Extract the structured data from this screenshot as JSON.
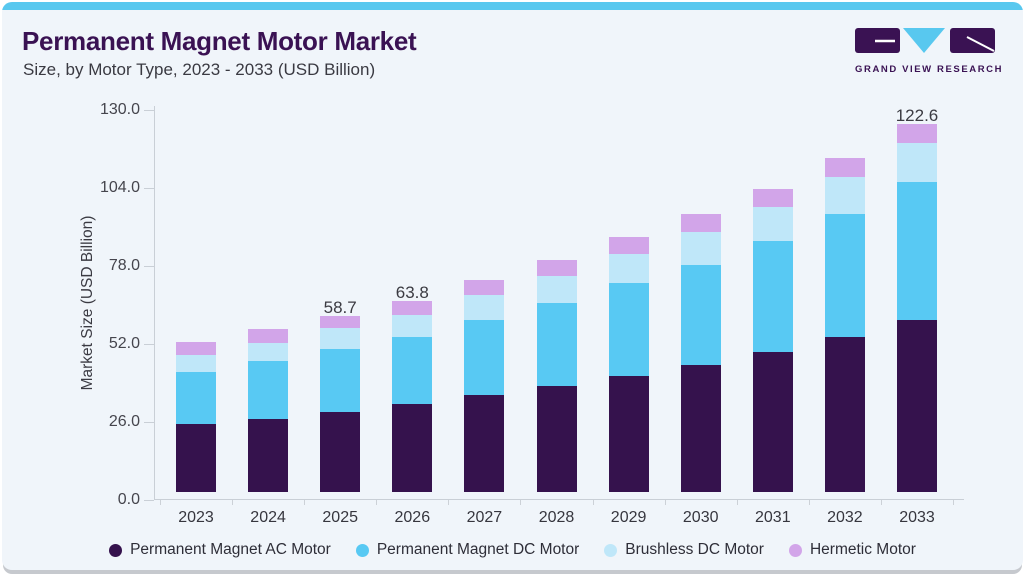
{
  "header": {
    "title": "Permanent Magnet Motor Market",
    "subtitle": "Size, by Motor Type, 2023 - 2033 (USD Billion)"
  },
  "logo": {
    "text": "GRAND VIEW RESEARCH",
    "mark_colors": {
      "purple": "#3a1253",
      "cyan": "#58c8ef"
    }
  },
  "chart_data": {
    "type": "bar",
    "stacked": true,
    "title": "Permanent Magnet Motor Market Size, by Motor Type, 2023 - 2033 (USD Billion)",
    "xlabel": "",
    "ylabel": "Market Size (USD Billion)",
    "ylim": [
      0,
      130
    ],
    "yticks": [
      0,
      26,
      52,
      78,
      104,
      130
    ],
    "ytick_labels": [
      "0.0",
      "26.0",
      "52.0",
      "78.0",
      "104.0",
      "130.0"
    ],
    "grid": false,
    "legend_position": "bottom",
    "categories": [
      "2023",
      "2024",
      "2025",
      "2026",
      "2027",
      "2028",
      "2029",
      "2030",
      "2031",
      "2032",
      "2033"
    ],
    "bar_total_labels": [
      "",
      "",
      "58.7",
      "63.8",
      "",
      "",
      "",
      "",
      "",
      "",
      "122.6"
    ],
    "series": [
      {
        "name": "Permanent Magnet AC Motor",
        "color": "#35124d",
        "values": [
          22.5,
          24.5,
          26.7,
          29.3,
          32.4,
          35.4,
          38.7,
          42.3,
          46.5,
          51.5,
          57.3
        ]
      },
      {
        "name": "Permanent Magnet DC Motor",
        "color": "#58c9f3",
        "values": [
          17.6,
          19.1,
          21.0,
          22.5,
          25.1,
          27.6,
          30.8,
          33.3,
          37.0,
          41.0,
          46.0
        ]
      },
      {
        "name": "Brushless DC Motor",
        "color": "#bfe7f9",
        "values": [
          5.6,
          6.2,
          7.0,
          7.2,
          8.3,
          8.9,
          9.7,
          11.0,
          11.4,
          12.6,
          13.2
        ]
      },
      {
        "name": "Hermetic Motor",
        "color": "#d2a5e9",
        "values": [
          4.3,
          4.5,
          4.0,
          4.8,
          5.0,
          5.5,
          5.9,
          6.2,
          6.1,
          6.4,
          6.1
        ]
      }
    ]
  }
}
